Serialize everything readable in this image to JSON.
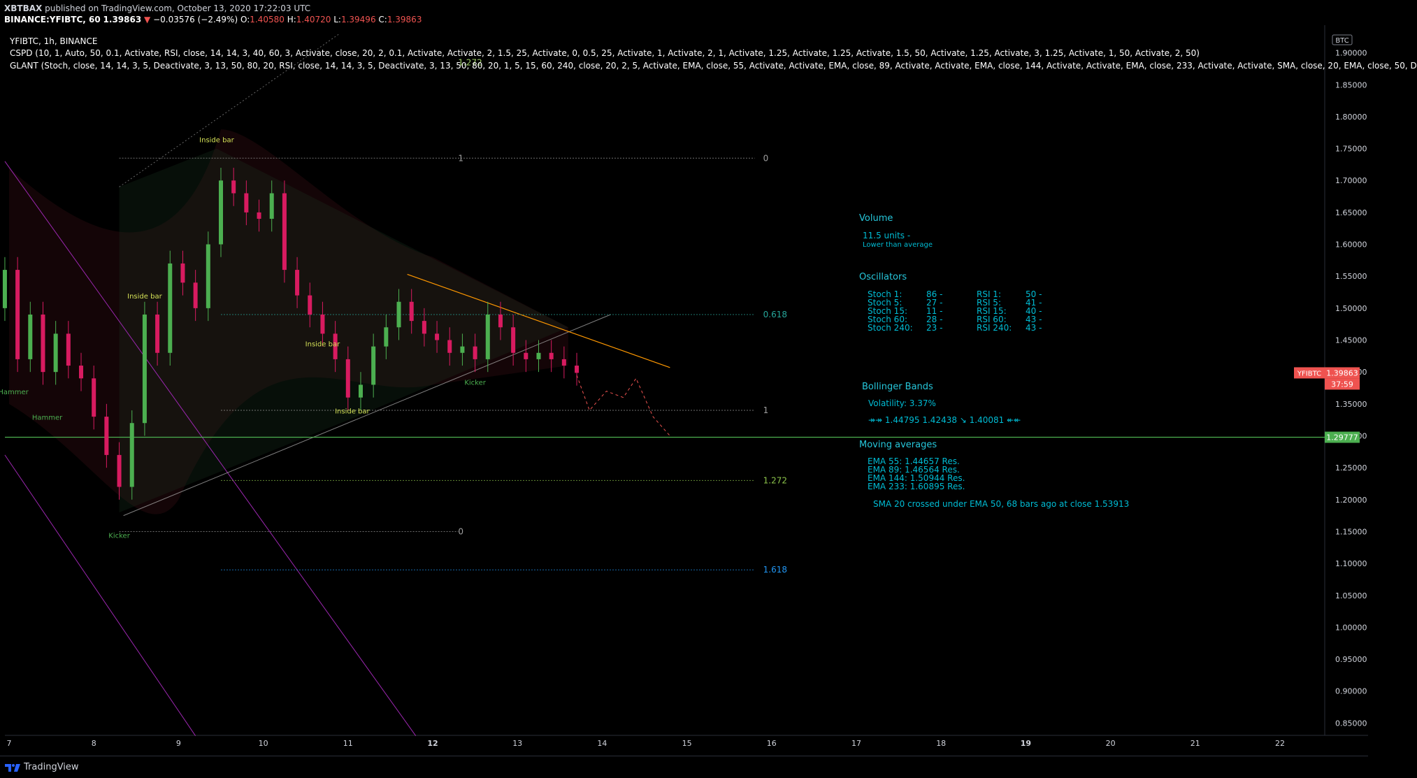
{
  "header": {
    "author": "XBTBAX",
    "published": "published on TradingView.com, October 13, 2020 17:22:03 UTC",
    "symbol_line": "BINANCE:YFIBTC, 60",
    "last": "1.39863",
    "arrow": "▼",
    "change": "−0.03576 (−2.49%)",
    "o_label": "O:",
    "o_val": "1.40580",
    "h_label": "H:",
    "h_val": "1.40720",
    "l_label": "L:",
    "l_val": "1.39496",
    "c_label": "C:",
    "c_val": "1.39863"
  },
  "legend": {
    "title": "YFIBTC, 1h, BINANCE",
    "cspd": "CSPD (10, 1, Auto, 50, 0.1, Activate, RSI, close, 14, 14, 3, 40, 60, 3, Activate, close, 20, 2, 0.1, Activate, Activate, 2, 1.5, 25, Activate, 0, 0.5, 25, Activate, 1, Activate, 2, 1, Activate, 1.25, Activate, 1.25, Activate, 1.5, 50, Activate, 1.25, Activate, 3, 1.25, Activate, 1, 50, Activate, 2, 50)",
    "glant": "GLANT (Stoch, close, 14, 14, 3, 5, Deactivate, 3, 13, 50, 80, 20, RSI, close, 14, 14, 3, 5, Deactivate, 3, 13, 50, 80, 20, 1, 5, 15, 60, 240, close, 20, 2, 5, Activate, EMA, close, 55, Activate, Activate, EMA, close, 89, Activate, Activate, EMA, close, 144, Activate, Activate, EMA, close, 233, Activate, Activate, SMA, close, 20, EMA, close, 50, D"
  },
  "currency": "BTC",
  "chart_data": {
    "type": "candlestick",
    "symbol": "BINANCE:YFIBTC",
    "interval": "1h",
    "ylim": [
      0.83,
      1.93
    ],
    "y_ticks": [
      "1.90000",
      "1.85000",
      "1.80000",
      "1.75000",
      "1.70000",
      "1.65000",
      "1.60000",
      "1.55000",
      "1.50000",
      "1.45000",
      "1.40000",
      "1.35000",
      "1.30000",
      "1.25000",
      "1.20000",
      "1.15000",
      "1.10000",
      "1.05000",
      "1.00000",
      "0.95000",
      "0.90000",
      "0.85000"
    ],
    "x_ticks": [
      "7",
      "8",
      "9",
      "10",
      "11",
      "12",
      "13",
      "14",
      "15",
      "16",
      "17",
      "18",
      "19",
      "20",
      "21",
      "22"
    ],
    "x_bold_ticks": [
      "12",
      "19"
    ],
    "price_tags": [
      {
        "label": "YFIBTC",
        "value": "1.39863",
        "color": "#ef5350"
      },
      {
        "label": "",
        "value": "37:59",
        "color": "#ef5350"
      },
      {
        "label": "",
        "value": "1.29777",
        "color": "#4caf50"
      }
    ],
    "horizontal_line": 1.29777,
    "fib_levels_upper": [
      {
        "label": "1.272"
      },
      {
        "label": "1"
      },
      {
        "label": "0"
      },
      {
        "label": "0.618"
      },
      {
        "label": "1"
      },
      {
        "label": "1.272"
      },
      {
        "label": "1.618"
      }
    ],
    "fib_level_lower": {
      "label": "0"
    },
    "pattern_labels": [
      {
        "text": "Inside bar",
        "day": 9.45,
        "price": 1.76,
        "color": "#d4e157"
      },
      {
        "text": "Inside bar",
        "day": 8.6,
        "price": 1.515,
        "color": "#d4e157"
      },
      {
        "text": "Inside bar",
        "day": 10.7,
        "price": 1.44,
        "color": "#d4e157"
      },
      {
        "text": "Inside bar",
        "day": 11.05,
        "price": 1.335,
        "color": "#d4e157"
      },
      {
        "text": "Hammer",
        "day": 7.05,
        "price": 1.365,
        "color": "#4caf50"
      },
      {
        "text": "Hammer",
        "day": 7.45,
        "price": 1.325,
        "color": "#4caf50"
      },
      {
        "text": "Kicker",
        "day": 12.5,
        "price": 1.38,
        "color": "#4caf50"
      },
      {
        "text": "Kicker",
        "day": 8.3,
        "price": 1.14,
        "color": "#4caf50"
      }
    ],
    "series": [
      {
        "name": "YFIBTC close (approx.)",
        "day": [
          6.95,
          7.1,
          7.25,
          7.4,
          7.55,
          7.7,
          7.85,
          8.0,
          8.15,
          8.3,
          8.45,
          8.6,
          8.75,
          8.9,
          9.05,
          9.2,
          9.35,
          9.5,
          9.65,
          9.8,
          9.95,
          10.1,
          10.25,
          10.4,
          10.55,
          10.7,
          10.85,
          11.0,
          11.15,
          11.3,
          11.45,
          11.6,
          11.75,
          11.9,
          12.05,
          12.2,
          12.35,
          12.5,
          12.65,
          12.8,
          12.95,
          13.1,
          13.25,
          13.4,
          13.55,
          13.7
        ],
        "close": [
          1.56,
          1.42,
          1.49,
          1.4,
          1.46,
          1.41,
          1.39,
          1.33,
          1.27,
          1.22,
          1.32,
          1.49,
          1.43,
          1.57,
          1.54,
          1.5,
          1.6,
          1.7,
          1.68,
          1.65,
          1.64,
          1.68,
          1.56,
          1.52,
          1.49,
          1.46,
          1.42,
          1.36,
          1.38,
          1.44,
          1.47,
          1.51,
          1.48,
          1.46,
          1.45,
          1.43,
          1.44,
          1.42,
          1.49,
          1.47,
          1.43,
          1.42,
          1.43,
          1.42,
          1.41,
          1.39863
        ]
      }
    ],
    "panel": {
      "volume_title": "Volume",
      "volume_value": "11.5",
      "volume_unit": "units",
      "volume_dash": "-",
      "volume_note": "Lower than average",
      "osc_title": "Oscillators",
      "stoch": [
        {
          "label": "Stoch 1:",
          "value": "86 -"
        },
        {
          "label": "Stoch 5:",
          "value": "27 -"
        },
        {
          "label": "Stoch 15:",
          "value": "11 -"
        },
        {
          "label": "Stoch 60:",
          "value": "28 -"
        },
        {
          "label": "Stoch 240:",
          "value": "23 -"
        }
      ],
      "rsi": [
        {
          "label": "RSI 1:",
          "value": "50 -"
        },
        {
          "label": "RSI 5:",
          "value": "41 -"
        },
        {
          "label": "RSI 15:",
          "value": "40 -"
        },
        {
          "label": "RSI 60:",
          "value": "43 -"
        },
        {
          "label": "RSI 240:",
          "value": "43 -"
        }
      ],
      "bb_title": "Bollinger Bands",
      "bb_vol_label": "Volatility:",
      "bb_vol_value": "3.37%",
      "bb_line": "↠↠ 1.44795   1.42438 ↘   1.40081 ↞↞",
      "ma_title": "Moving averages",
      "ma": [
        {
          "label": "EMA 55:",
          "value": "1.44657",
          "note": "Res."
        },
        {
          "label": "EMA 89:",
          "value": "1.46564",
          "note": "Res."
        },
        {
          "label": "EMA 144:",
          "value": "1.50944",
          "note": "Res."
        },
        {
          "label": "EMA 233:",
          "value": "1.60895",
          "note": "Res."
        }
      ],
      "sma_note": "SMA 20 crossed under EMA 50, 68 bars ago at close 1.53913"
    }
  },
  "footer": {
    "brand": "TradingView"
  },
  "colors": {
    "up": "#26a69a",
    "down": "#ef5350",
    "candle_up": "#4caf50",
    "candle_down": "#d81b60",
    "orange_trend": "#ff9800",
    "purple_channel": "#9c27b0",
    "fib_teal": "#26a69a",
    "fib_blue": "#2196f3",
    "panel_text": "#00bcd4",
    "panel_title": "#26c6da"
  }
}
